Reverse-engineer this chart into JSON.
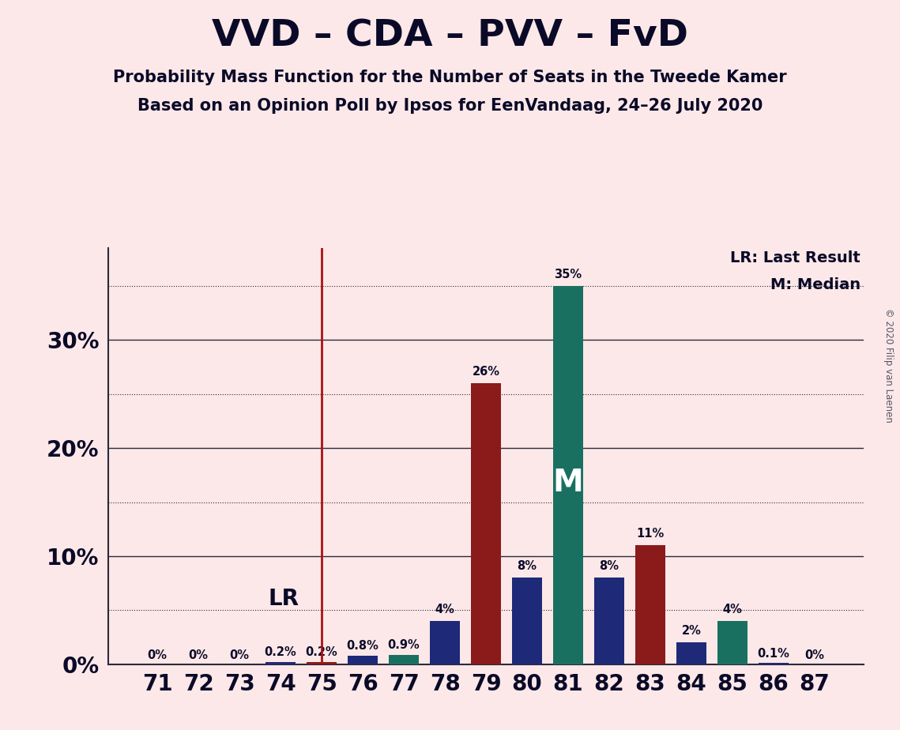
{
  "title": "VVD – CDA – PVV – FvD",
  "subtitle1": "Probability Mass Function for the Number of Seats in the Tweede Kamer",
  "subtitle2": "Based on an Opinion Poll by Ipsos for EenVandaag, 24–26 July 2020",
  "copyright": "© 2020 Filip van Laenen",
  "seats": [
    71,
    72,
    73,
    74,
    75,
    76,
    77,
    78,
    79,
    80,
    81,
    82,
    83,
    84,
    85,
    86,
    87
  ],
  "values": [
    0.0,
    0.0,
    0.0,
    0.2,
    0.2,
    0.8,
    0.9,
    4.0,
    26.0,
    8.0,
    35.0,
    8.0,
    11.0,
    2.0,
    4.0,
    0.1,
    0.0
  ],
  "labels": [
    "0%",
    "0%",
    "0%",
    "0.2%",
    "0.2%",
    "0.8%",
    "0.9%",
    "4%",
    "26%",
    "8%",
    "35%",
    "8%",
    "11%",
    "2%",
    "4%",
    "0.1%",
    "0%"
  ],
  "bar_colors": [
    "#1e2a78",
    "#1e2a78",
    "#1e2a78",
    "#1e2a78",
    "#8b1a1a",
    "#1e2a78",
    "#1a7060",
    "#1e2a78",
    "#8b1a1a",
    "#1e2a78",
    "#1a7060",
    "#1e2a78",
    "#8b1a1a",
    "#1e2a78",
    "#1a7060",
    "#1e2a78",
    "#1e2a78"
  ],
  "lr_seat": 75,
  "median_seat": 81,
  "background_color": "#fce8e8",
  "lr_line_color": "#aa1111",
  "solid_grid_vals": [
    0,
    10,
    20,
    30
  ],
  "dotted_grid_vals": [
    5,
    15,
    25,
    35
  ],
  "ytick_vals": [
    0,
    10,
    20,
    30
  ],
  "ylim": [
    0,
    38.5
  ],
  "legend_lr": "LR: Last Result",
  "legend_m": "M: Median",
  "text_color": "#0a0a28"
}
